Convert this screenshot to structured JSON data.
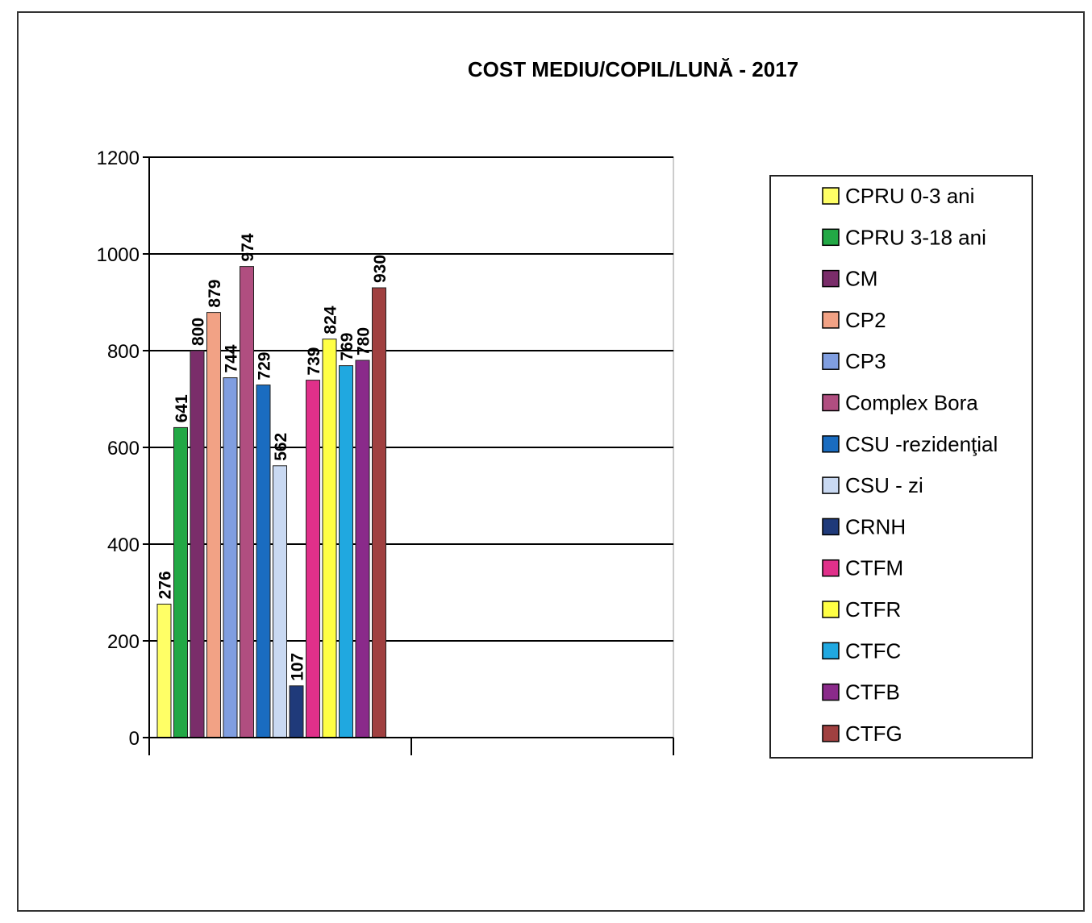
{
  "chart_data": {
    "type": "bar",
    "title": "COST MEDIU/COPIL/LUNĂ - 2017",
    "categories": [
      null,
      null
    ],
    "series": [
      {
        "name": "CPRU 0-3 ani",
        "color": "#ffff66",
        "values": [
          276,
          null
        ]
      },
      {
        "name": "CPRU 3-18 ani",
        "color": "#22a845",
        "values": [
          641,
          null
        ]
      },
      {
        "name": "CM",
        "color": "#7a2d6a",
        "values": [
          800,
          null
        ]
      },
      {
        "name": "CP2",
        "color": "#f2a285",
        "values": [
          879,
          null
        ]
      },
      {
        "name": "CP3",
        "color": "#809ee0",
        "values": [
          744,
          null
        ]
      },
      {
        "name": "Complex Bora",
        "color": "#b04e80",
        "values": [
          974,
          null
        ]
      },
      {
        "name": "CSU -rezidenţial",
        "color": "#1a6cc0",
        "values": [
          729,
          null
        ]
      },
      {
        "name": "CSU - zi",
        "color": "#c9d9f2",
        "values": [
          562,
          null
        ]
      },
      {
        "name": "CRNH",
        "color": "#1f3a7a",
        "values": [
          107,
          null
        ]
      },
      {
        "name": "CTFM",
        "color": "#e0308a",
        "values": [
          739,
          null
        ]
      },
      {
        "name": "CTFR",
        "color": "#ffff44",
        "values": [
          824,
          null
        ]
      },
      {
        "name": "CTFC",
        "color": "#20a8e0",
        "values": [
          769,
          null
        ]
      },
      {
        "name": "CTFB",
        "color": "#8a2a8a",
        "values": [
          780,
          null
        ]
      },
      {
        "name": "CTFG",
        "color": "#a04040",
        "values": [
          930,
          null
        ]
      }
    ],
    "ylim": [
      0,
      1200
    ],
    "yticks": [
      0,
      200,
      400,
      600,
      800,
      1000,
      1200
    ],
    "grid": true,
    "legend": "right"
  }
}
